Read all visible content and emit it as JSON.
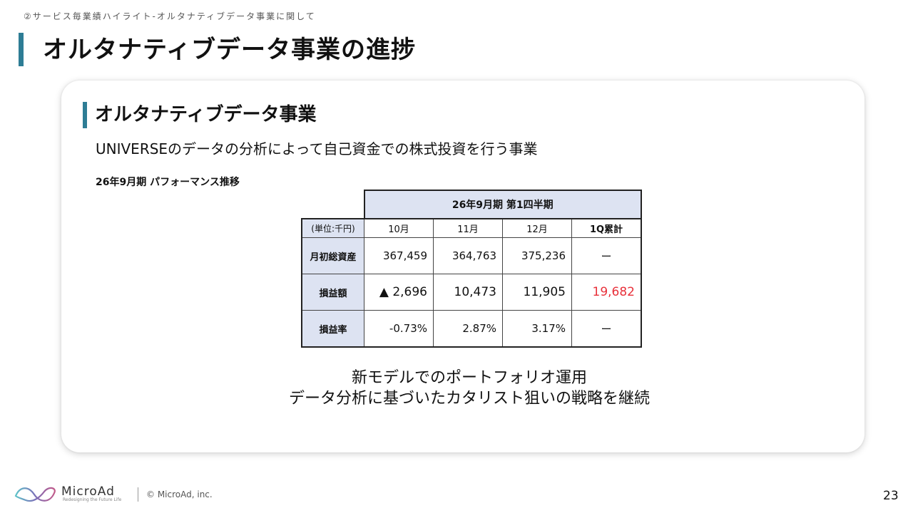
{
  "header": {
    "breadcrumb": "②サービス毎業績ハイライト-オルタナティブデータ事業に関して",
    "title": "オルタナティブデータ事業の進捗"
  },
  "section": {
    "title": "オルタナティブデータ事業",
    "description": "UNIVERSEのデータの分析によって自己資金での株式投資を行う事業",
    "perf_label": "26年9月期 パフォーマンス推移"
  },
  "table": {
    "period_header": "26年9月期 第1四半期",
    "unit_label": "(単位:千円)",
    "columns": [
      "10月",
      "11月",
      "12月",
      "1Q累計"
    ],
    "rows": [
      {
        "label": "月初総資産",
        "cells": [
          "367,459",
          "364,763",
          "375,236",
          "ー"
        ]
      },
      {
        "label": "損益額",
        "cells": [
          "▲ 2,696",
          "10,473",
          "11,905",
          "19,682"
        ]
      },
      {
        "label": "損益率",
        "cells": [
          "-0.73%",
          "2.87%",
          "3.17%",
          "ー"
        ]
      }
    ],
    "highlight_color": "#e8303a"
  },
  "conclusion": {
    "line1": "新モデルでのポートフォリオ運用",
    "line2": "データ分析に基づいたカタリスト狙いの戦略を継続"
  },
  "footer": {
    "logo_text": "MicroAd",
    "logo_tagline": "Redesigning the Future Life",
    "copyright": "© MicroAd, inc.",
    "page_number": "23",
    "logo_icon": "microad-infinity-logo-icon"
  },
  "colors": {
    "accent": "#2e7d95",
    "table_header_bg": "#dde3f2"
  }
}
